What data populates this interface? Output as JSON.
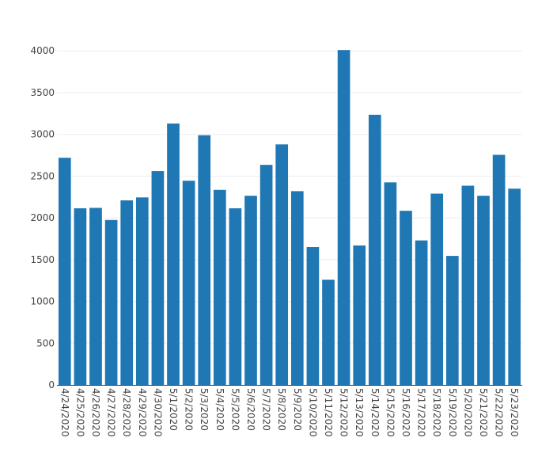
{
  "chart_data": {
    "type": "bar",
    "categories": [
      "4/24/2020",
      "4/25/2020",
      "4/26/2020",
      "4/27/2020",
      "4/28/2020",
      "4/29/2020",
      "4/30/2020",
      "5/1/2020",
      "5/2/2020",
      "5/3/2020",
      "5/4/2020",
      "5/5/2020",
      "5/6/2020",
      "5/7/2020",
      "5/8/2020",
      "5/9/2020",
      "5/10/2020",
      "5/11/2020",
      "5/12/2020",
      "5/13/2020",
      "5/14/2020",
      "5/15/2020",
      "5/16/2020",
      "5/17/2020",
      "5/18/2020",
      "5/19/2020",
      "5/20/2020",
      "5/21/2020",
      "5/22/2020",
      "5/23/2020"
    ],
    "values": [
      2720,
      2115,
      2120,
      1975,
      2210,
      2245,
      2560,
      3130,
      2445,
      2990,
      2335,
      2115,
      2265,
      2635,
      2880,
      2320,
      1650,
      1260,
      4010,
      1670,
      3235,
      2425,
      2085,
      1730,
      2290,
      1545,
      2385,
      2265,
      2755,
      2350
    ],
    "yticks": [
      0,
      500,
      1000,
      1500,
      2000,
      2500,
      3000,
      3500,
      4000
    ],
    "ylim": [
      0,
      4040
    ],
    "bar_color": "#1f77b4",
    "grid": true,
    "title": "",
    "xlabel": "",
    "ylabel": ""
  }
}
